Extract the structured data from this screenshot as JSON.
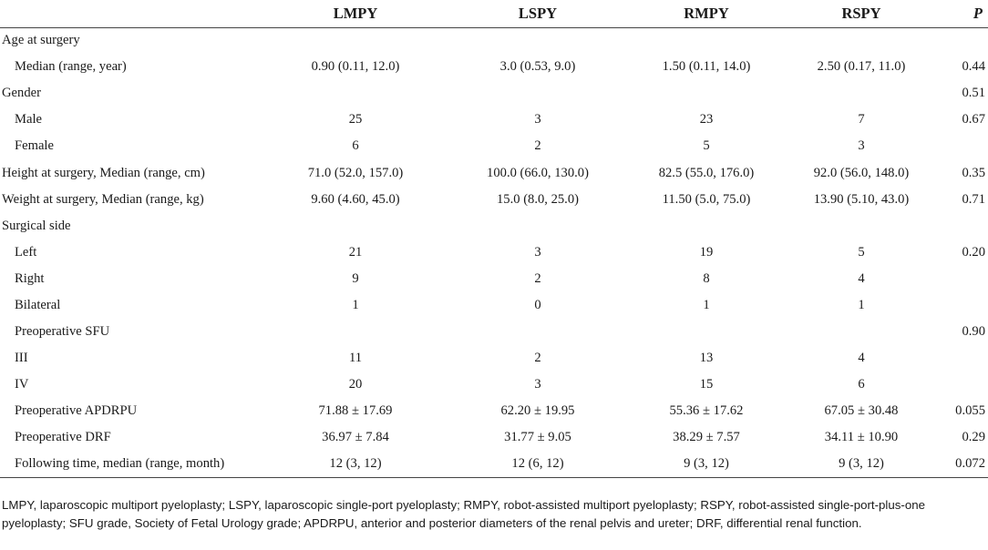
{
  "table": {
    "headers": [
      "",
      "LMPY",
      "LSPY",
      "RMPY",
      "RSPY",
      "P"
    ],
    "rows": [
      {
        "label": "Age at surgery",
        "indent": false,
        "cells": [
          "",
          "",
          "",
          ""
        ],
        "p": ""
      },
      {
        "label": "Median (range, year)",
        "indent": true,
        "cells": [
          "0.90 (0.11, 12.0)",
          "3.0 (0.53, 9.0)",
          "1.50 (0.11, 14.0)",
          "2.50 (0.17, 11.0)"
        ],
        "p": "0.44"
      },
      {
        "label": "Gender",
        "indent": false,
        "cells": [
          "",
          "",
          "",
          ""
        ],
        "p": "0.51"
      },
      {
        "label": "Male",
        "indent": true,
        "cells": [
          "25",
          "3",
          "23",
          "7"
        ],
        "p": "0.67"
      },
      {
        "label": "Female",
        "indent": true,
        "cells": [
          "6",
          "2",
          "5",
          "3"
        ],
        "p": ""
      },
      {
        "label": "Height at surgery, Median (range, cm)",
        "indent": false,
        "cells": [
          "71.0 (52.0, 157.0)",
          "100.0 (66.0, 130.0)",
          "82.5 (55.0, 176.0)",
          "92.0 (56.0, 148.0)"
        ],
        "p": "0.35"
      },
      {
        "label": "Weight at surgery, Median (range, kg)",
        "indent": false,
        "cells": [
          "9.60 (4.60, 45.0)",
          "15.0 (8.0, 25.0)",
          "11.50 (5.0, 75.0)",
          "13.90 (5.10, 43.0)"
        ],
        "p": "0.71"
      },
      {
        "label": "Surgical side",
        "indent": false,
        "cells": [
          "",
          "",
          "",
          ""
        ],
        "p": ""
      },
      {
        "label": "Left",
        "indent": true,
        "cells": [
          "21",
          "3",
          "19",
          "5"
        ],
        "p": "0.20"
      },
      {
        "label": "Right",
        "indent": true,
        "cells": [
          "9",
          "2",
          "8",
          "4"
        ],
        "p": ""
      },
      {
        "label": "Bilateral",
        "indent": true,
        "cells": [
          "1",
          "0",
          "1",
          "1"
        ],
        "p": ""
      },
      {
        "label": "Preoperative SFU",
        "indent": true,
        "cells": [
          "",
          "",
          "",
          ""
        ],
        "p": "0.90"
      },
      {
        "label": "III",
        "indent": true,
        "cells": [
          "11",
          "2",
          "13",
          "4"
        ],
        "p": ""
      },
      {
        "label": "IV",
        "indent": true,
        "cells": [
          "20",
          "3",
          "15",
          "6"
        ],
        "p": ""
      },
      {
        "label": "Preoperative APDRPU",
        "indent": true,
        "cells": [
          "71.88 ± 17.69",
          "62.20 ± 19.95",
          "55.36 ± 17.62",
          "67.05 ± 30.48"
        ],
        "p": "0.055"
      },
      {
        "label": "Preoperative DRF",
        "indent": true,
        "cells": [
          "36.97 ± 7.84",
          "31.77 ± 9.05",
          "38.29 ± 7.57",
          "34.11 ± 10.90"
        ],
        "p": "0.29"
      },
      {
        "label": "Following time, median (range, month)",
        "indent": true,
        "cells": [
          "12 (3, 12)",
          "12 (6, 12)",
          "9 (3, 12)",
          "9 (3, 12)"
        ],
        "p": "0.072"
      }
    ]
  },
  "footnote": "LMPY, laparoscopic multiport pyeloplasty; LSPY, laparoscopic single-port pyeloplasty; RMPY, robot-assisted multiport pyeloplasty; RSPY, robot-assisted single-port-plus-one pyeloplasty; SFU grade, Society of Fetal Urology grade; APDRPU, anterior and posterior diameters of the renal pelvis and ureter; DRF, differential renal function."
}
